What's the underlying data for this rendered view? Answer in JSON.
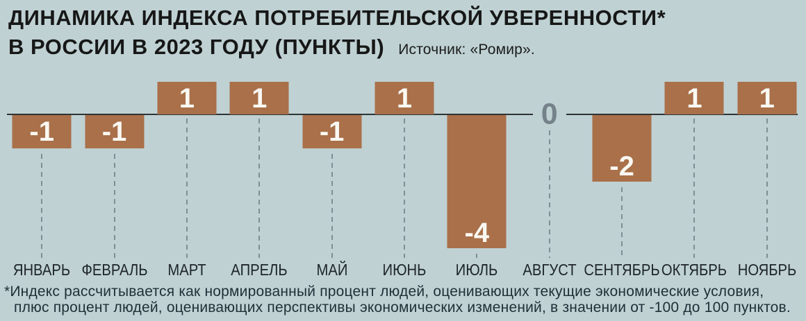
{
  "header": {
    "title_line1": "ДИНАМИКА ИНДЕКСА ПОТРЕБИТЕЛЬСКОЙ УВЕРЕННОСТИ*",
    "title_line2": "В РОССИИ В 2023 ГОДУ (ПУНКТЫ)",
    "source": "Источник: «Ромир»."
  },
  "chart_data": {
    "type": "bar",
    "title": "ДИНАМИКА ИНДЕКСА ПОТРЕБИТЕЛЬСКОЙ УВЕРЕННОСТИ В РОССИИ В 2023 ГОДУ (ПУНКТЫ)",
    "source": "Ромир",
    "categories": [
      "ЯНВАРЬ",
      "ФЕВРАЛЬ",
      "МАРТ",
      "АПРЕЛЬ",
      "МАЙ",
      "ИЮНЬ",
      "ИЮЛЬ",
      "АВГУСТ",
      "СЕНТЯБРЬ",
      "ОКТЯБРЬ",
      "НОЯБРЬ"
    ],
    "values": [
      -1,
      -1,
      1,
      1,
      -1,
      1,
      -4,
      0,
      -2,
      1,
      1
    ],
    "xlabel": "",
    "ylabel": "пункты",
    "ylim": [
      -4,
      1
    ],
    "grid": false,
    "legend": false,
    "zero_axis_label": "0",
    "value_labels_shown": true
  },
  "footnote": {
    "line1": "*Индекс рассчитывается как нормированный процент людей, оценивающих текущие экономические условия,",
    "line2": "плюс процент людей, оценивающих перспективы экономических изменений, в значении от -100 до 100 пунктов."
  },
  "colors": {
    "background": "#bfd1d3",
    "bar": "#a9704a",
    "axis": "#2e3233",
    "dashed_line": "#7e8f93",
    "zero_label": "#75828a",
    "bar_value_text": "#faf8f2",
    "title_text": "#171717",
    "month_label_text": "#1d2427",
    "footnote_text": "#1e3036"
  }
}
